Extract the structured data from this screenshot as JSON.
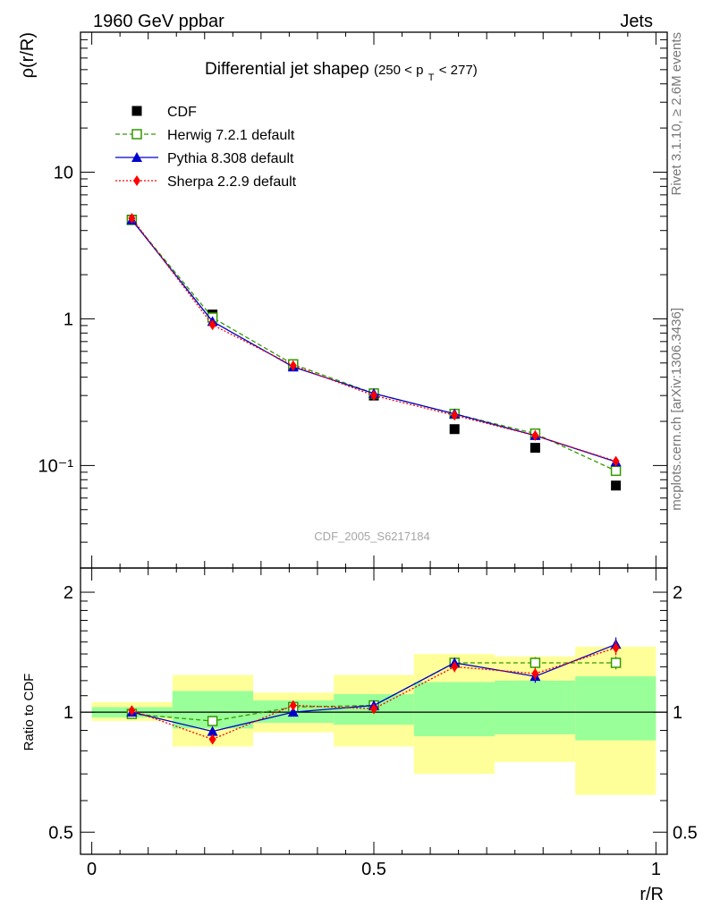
{
  "header": {
    "left": "1960 GeV ppbar",
    "right": "Jets",
    "side_top": "Rivet 3.1.10, ≥ 2.6M events",
    "side_bottom": "mcplots.cern.ch [arXiv:1306.3436]",
    "watermark": "CDF_2005_S6217184"
  },
  "chart_data": [
    {
      "type": "scatter",
      "panel": "main",
      "title": "Differential jet shapeρ",
      "title_suffix": "(250 < p",
      "title_sub": "T",
      "title_suffix2": " < 277)",
      "ylabel": "ρ(r/R)",
      "xlabel": "",
      "yscale": "log",
      "xlim": [
        -0.02,
        1.02
      ],
      "ylim": [
        0.02,
        90
      ],
      "yticks": [
        {
          "value": 10,
          "label": "10"
        },
        {
          "value": 1,
          "label": "1"
        },
        {
          "value": 0.1,
          "label": "10⁻¹"
        }
      ],
      "legend_position": "top-left",
      "x": [
        0.071,
        0.214,
        0.357,
        0.5,
        0.643,
        0.786,
        0.929
      ],
      "series": [
        {
          "name": "CDF",
          "color": "#000000",
          "marker": "square-filled",
          "line": "none",
          "values": [
            4.75,
            1.07,
            0.48,
            0.3,
            0.177,
            0.132,
            0.073
          ],
          "errors": [
            0.05,
            0.015,
            0.006,
            0.004,
            0.003,
            0.003,
            0.002
          ]
        },
        {
          "name": "Herwig 7.2.1 default",
          "color": "#339900",
          "marker": "square-open",
          "line": "dashed",
          "values": [
            4.72,
            1.02,
            0.49,
            0.31,
            0.225,
            0.165,
            0.092
          ],
          "errors": [
            0.05,
            0.015,
            0.006,
            0.004,
            0.003,
            0.003,
            0.002
          ]
        },
        {
          "name": "Pythia 8.308 default",
          "color": "#0000cc",
          "marker": "triangle",
          "line": "solid",
          "values": [
            4.72,
            0.96,
            0.47,
            0.31,
            0.225,
            0.16,
            0.106
          ],
          "errors": [
            0.05,
            0.015,
            0.006,
            0.004,
            0.003,
            0.003,
            0.002
          ]
        },
        {
          "name": "Sherpa 2.2.9 default",
          "color": "#ff0000",
          "marker": "diamond",
          "line": "dotted",
          "values": [
            4.85,
            0.91,
            0.48,
            0.3,
            0.22,
            0.16,
            0.107
          ],
          "errors": [
            0.05,
            0.015,
            0.006,
            0.004,
            0.003,
            0.003,
            0.002
          ]
        }
      ]
    },
    {
      "type": "scatter",
      "panel": "ratio",
      "ylabel": "Ratio to CDF",
      "xlabel": "r/R",
      "yscale": "log",
      "xlim": [
        -0.02,
        1.02
      ],
      "ylim": [
        0.44,
        2.3
      ],
      "yticks": [
        {
          "value": 2,
          "label": "2"
        },
        {
          "value": 1,
          "label": "1"
        },
        {
          "value": 0.5,
          "label": "0.5"
        }
      ],
      "xticks": [
        {
          "value": 0,
          "label": "0"
        },
        {
          "value": 0.5,
          "label": "0.5"
        },
        {
          "value": 1,
          "label": "1"
        }
      ],
      "bins": [
        [
          0,
          0.143
        ],
        [
          0.143,
          0.286
        ],
        [
          0.286,
          0.429
        ],
        [
          0.429,
          0.571
        ],
        [
          0.571,
          0.714
        ],
        [
          0.714,
          0.857
        ],
        [
          0.857,
          1.0
        ]
      ],
      "band_inner": [
        [
          0.97,
          1.03
        ],
        [
          0.91,
          1.13
        ],
        [
          0.94,
          1.07
        ],
        [
          0.93,
          1.11
        ],
        [
          0.87,
          1.19
        ],
        [
          0.88,
          1.2
        ],
        [
          0.85,
          1.23
        ]
      ],
      "band_outer": [
        [
          0.95,
          1.06
        ],
        [
          0.82,
          1.24
        ],
        [
          0.89,
          1.12
        ],
        [
          0.82,
          1.24
        ],
        [
          0.7,
          1.4
        ],
        [
          0.75,
          1.38
        ],
        [
          0.62,
          1.46
        ]
      ],
      "x": [
        0.071,
        0.214,
        0.357,
        0.5,
        0.643,
        0.786,
        0.929
      ],
      "series": [
        {
          "name": "Herwig 7.2.1 default",
          "color": "#339900",
          "marker": "square-open",
          "line": "dashed",
          "values": [
            0.99,
            0.95,
            1.03,
            1.04,
            1.33,
            1.33,
            1.33
          ],
          "errors": [
            0.01,
            0.015,
            0.02,
            0.03,
            0.04,
            0.045,
            0.05
          ]
        },
        {
          "name": "Pythia 8.308 default",
          "color": "#0000cc",
          "marker": "triangle",
          "line": "solid",
          "values": [
            1.0,
            0.895,
            1.0,
            1.04,
            1.33,
            1.23,
            1.48
          ],
          "errors": [
            0.01,
            0.015,
            0.02,
            0.03,
            0.04,
            0.045,
            0.06
          ]
        },
        {
          "name": "Sherpa 2.2.9 default",
          "color": "#ff0000",
          "marker": "diamond",
          "line": "dotted",
          "values": [
            1.01,
            0.855,
            1.04,
            1.02,
            1.3,
            1.25,
            1.45
          ],
          "errors": [
            0.01,
            0.015,
            0.02,
            0.03,
            0.04,
            0.045,
            0.06
          ]
        }
      ],
      "reference_line": 1
    }
  ]
}
